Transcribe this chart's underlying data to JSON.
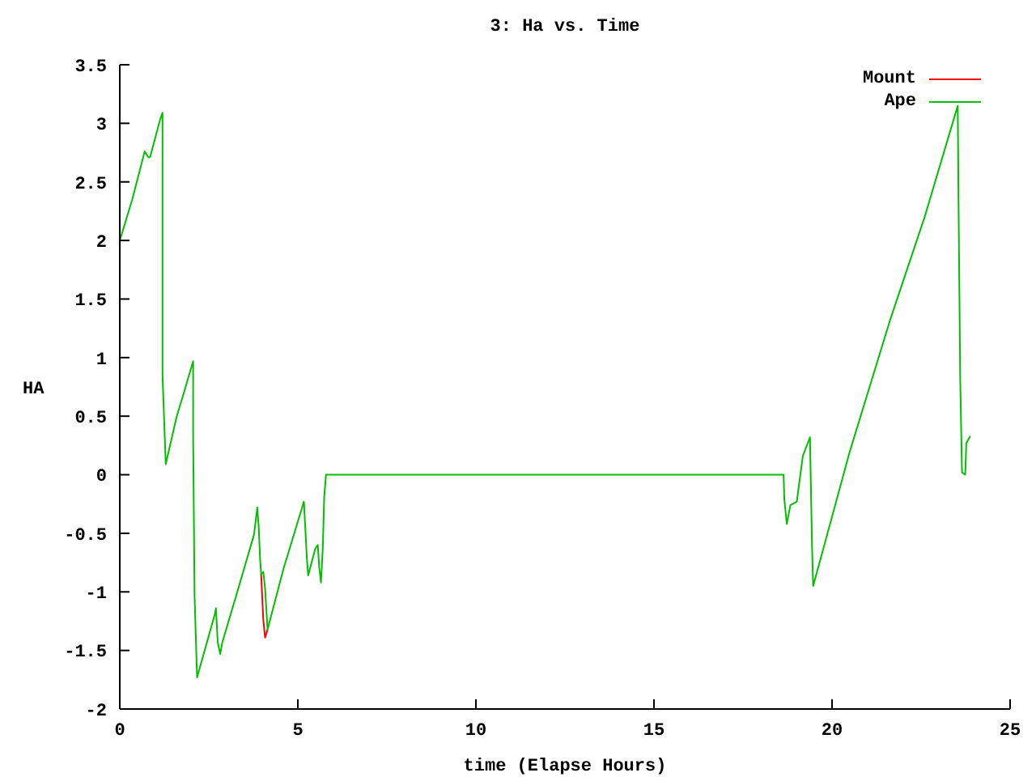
{
  "chart_data": {
    "type": "line",
    "title": "3: Ha vs. Time",
    "xlabel": "time (Elapse Hours)",
    "ylabel": "HA",
    "x": [
      0,
      0.35,
      0.7,
      0.8,
      0.85,
      1.14,
      1.2,
      1.2,
      1.2,
      1.29,
      1.6,
      1.8,
      2.06,
      2.06,
      2.1,
      2.17,
      2.67,
      2.7,
      2.75,
      2.82,
      2.88,
      3.3,
      3.77,
      3.86,
      3.9,
      3.94,
      3.97,
      4.03,
      4.08,
      4.15,
      4.6,
      5.17,
      5.2,
      5.25,
      5.29,
      5.49,
      5.56,
      5.6,
      5.65,
      5.7,
      5.74,
      5.79,
      10,
      15,
      18.64,
      18.66,
      18.73,
      18.83,
      19.01,
      19.18,
      19.38,
      19.4,
      19.44,
      19.47,
      20.5,
      21.64,
      22.6,
      23.53,
      23.55,
      23.6,
      23.65,
      23.74,
      23.77,
      23.88
    ],
    "series": [
      {
        "name": "Mount",
        "color": "#ff0000",
        "values": [
          null,
          null,
          null,
          null,
          null,
          null,
          null,
          null,
          null,
          null,
          null,
          null,
          null,
          null,
          null,
          null,
          null,
          null,
          null,
          null,
          null,
          null,
          null,
          null,
          null,
          null,
          -0.85,
          -1.24,
          -1.39,
          -1.32,
          null,
          null,
          null,
          null,
          null,
          null,
          null,
          null,
          null,
          null,
          null,
          null,
          null,
          null,
          null,
          null,
          null,
          null,
          null,
          null,
          null,
          null,
          null,
          null,
          null,
          null,
          null,
          null,
          null,
          null,
          null,
          null,
          null,
          null
        ]
      },
      {
        "name": "Ape",
        "color": "#00c000",
        "values": [
          2.0,
          2.35,
          2.76,
          2.71,
          2.71,
          3.04,
          3.09,
          2.34,
          0.85,
          0.09,
          0.5,
          0.7,
          0.97,
          0.32,
          -1.04,
          -1.73,
          -1.19,
          -1.14,
          -1.43,
          -1.53,
          -1.43,
          -1.0,
          -0.51,
          -0.28,
          -0.44,
          -0.72,
          -0.85,
          -0.83,
          -0.97,
          -1.32,
          -0.8,
          -0.23,
          -0.4,
          -0.7,
          -0.86,
          -0.63,
          -0.6,
          -0.79,
          -0.92,
          -0.63,
          -0.19,
          0,
          0,
          0,
          0,
          -0.21,
          -0.42,
          -0.26,
          -0.23,
          0.16,
          0.32,
          0,
          -0.63,
          -0.95,
          0.2,
          1.33,
          2.2,
          3.15,
          2.39,
          0.8,
          0.02,
          0,
          0.27,
          0.33
        ]
      }
    ],
    "xlim": [
      0,
      25
    ],
    "xticks": [
      0,
      5,
      10,
      15,
      20,
      25
    ],
    "ylim": [
      -2,
      3.5
    ],
    "yticks": [
      -2,
      -1.5,
      -1,
      -0.5,
      0,
      0.5,
      1,
      1.5,
      2,
      2.5,
      3,
      3.5
    ],
    "legend": "top right",
    "marker": "none",
    "grid": false
  }
}
